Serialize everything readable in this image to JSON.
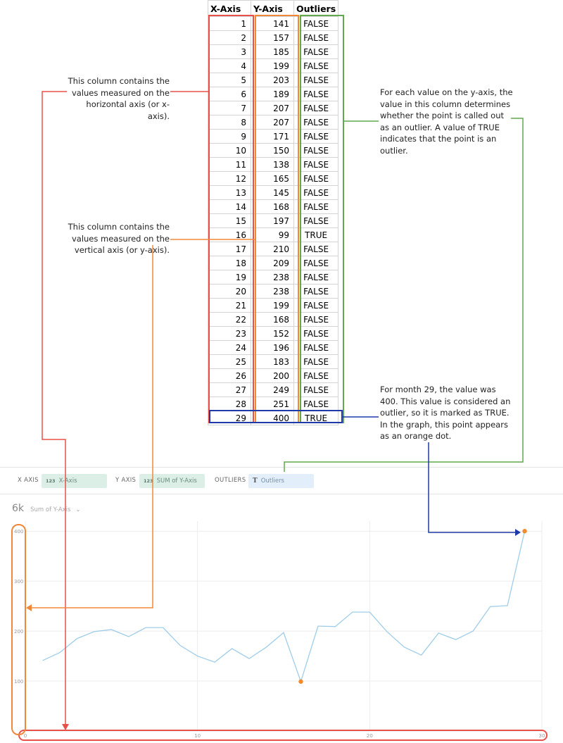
{
  "table": {
    "headers": [
      "X-Axis",
      "Y-Axis",
      "Outliers"
    ],
    "rows": [
      [
        1,
        141,
        "FALSE"
      ],
      [
        2,
        157,
        "FALSE"
      ],
      [
        3,
        185,
        "FALSE"
      ],
      [
        4,
        199,
        "FALSE"
      ],
      [
        5,
        203,
        "FALSE"
      ],
      [
        6,
        189,
        "FALSE"
      ],
      [
        7,
        207,
        "FALSE"
      ],
      [
        8,
        207,
        "FALSE"
      ],
      [
        9,
        171,
        "FALSE"
      ],
      [
        10,
        150,
        "FALSE"
      ],
      [
        11,
        138,
        "FALSE"
      ],
      [
        12,
        165,
        "FALSE"
      ],
      [
        13,
        145,
        "FALSE"
      ],
      [
        14,
        168,
        "FALSE"
      ],
      [
        15,
        197,
        "FALSE"
      ],
      [
        16,
        99,
        "TRUE"
      ],
      [
        17,
        210,
        "FALSE"
      ],
      [
        18,
        209,
        "FALSE"
      ],
      [
        19,
        238,
        "FALSE"
      ],
      [
        20,
        238,
        "FALSE"
      ],
      [
        21,
        199,
        "FALSE"
      ],
      [
        22,
        168,
        "FALSE"
      ],
      [
        23,
        152,
        "FALSE"
      ],
      [
        24,
        196,
        "FALSE"
      ],
      [
        25,
        183,
        "FALSE"
      ],
      [
        26,
        200,
        "FALSE"
      ],
      [
        27,
        249,
        "FALSE"
      ],
      [
        28,
        251,
        "FALSE"
      ],
      [
        29,
        400,
        "TRUE"
      ]
    ]
  },
  "notes": {
    "x_column": "This column contains the values measured on the horizontal axis (or x-axis).",
    "y_column": "This column contains the values measured on the vertical axis (or y-axis).",
    "outliers_column": "For each value on the y-axis, the value in this column determines whether the point is called out as an outlier. A value of TRUE indicates that the point is an outlier.",
    "month29": "For month 29, the value was 400. This value is considered an outlier, so it is marked as TRUE. In the graph, this point appears as an orange dot."
  },
  "field_bar": {
    "x_label": "X AXIS",
    "x_type": "123",
    "x_field": "X-Axis",
    "y_label": "Y AXIS",
    "y_type": "123",
    "y_field": "SUM of Y-Axis",
    "outliers_label": "OUTLIERS",
    "outliers_type": "T",
    "outliers_field": "Outliers"
  },
  "summary": {
    "value": "6k",
    "label": "Sum of Y-Axis"
  },
  "colors": {
    "x_highlight": "#e8514a",
    "y_highlight": "#f0883a",
    "outliers_highlight": "#62a84f",
    "month29_highlight": "#1f3aa8",
    "line": "#9fcde9",
    "outlier_dot": "#f58a2a",
    "grid": "#ececec"
  },
  "chart_data": {
    "type": "line",
    "x": [
      1,
      2,
      3,
      4,
      5,
      6,
      7,
      8,
      9,
      10,
      11,
      12,
      13,
      14,
      15,
      16,
      17,
      18,
      19,
      20,
      21,
      22,
      23,
      24,
      25,
      26,
      27,
      28,
      29
    ],
    "series": [
      {
        "values": [
          141,
          157,
          185,
          199,
          203,
          189,
          207,
          207,
          171,
          150,
          138,
          165,
          145,
          168,
          197,
          99,
          210,
          209,
          238,
          238,
          199,
          168,
          152,
          196,
          183,
          200,
          249,
          251,
          400
        ]
      }
    ],
    "outliers": [
      16,
      29
    ],
    "xlim": [
      0,
      30
    ],
    "ylim": [
      0,
      420
    ],
    "x_ticks": [
      "0",
      "10",
      "20",
      "30"
    ],
    "y_ticks": [
      "100",
      "200",
      "300",
      "400"
    ],
    "grid": true
  }
}
